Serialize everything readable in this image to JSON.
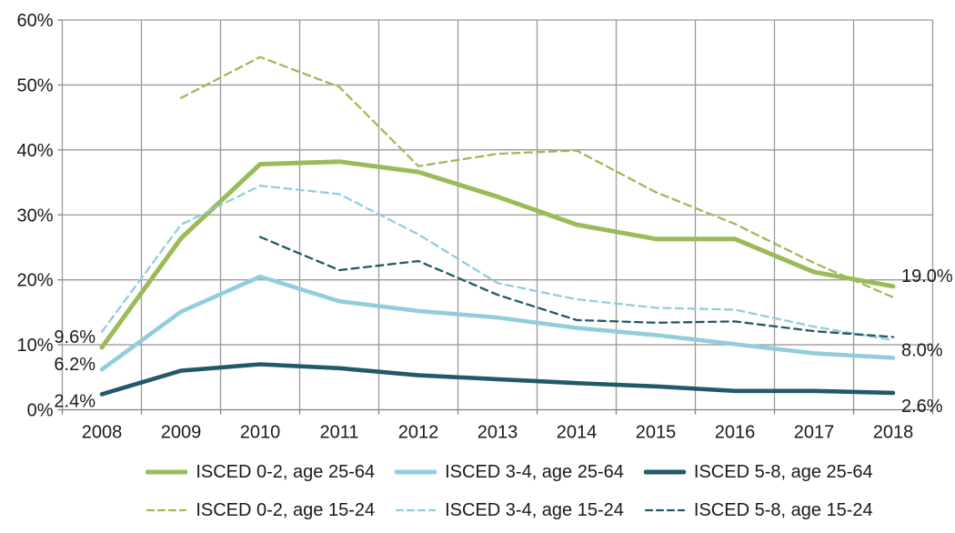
{
  "chart_data": {
    "type": "line",
    "title": "",
    "x_ticks": [
      "2008",
      "2009",
      "2010",
      "2011",
      "2012",
      "2013",
      "2014",
      "2015",
      "2016",
      "2017",
      "2018"
    ],
    "y_ticks": [
      "0%",
      "10%",
      "20%",
      "30%",
      "40%",
      "50%",
      "60%"
    ],
    "y_axis": {
      "min": 0,
      "max": 60,
      "step": 10,
      "unit": "%"
    },
    "grid": true,
    "legend_position": "bottom",
    "series": [
      {
        "name": "ISCED 0-2, age 25-64",
        "color": "#9BBB59",
        "style": "solid",
        "values": [
          9.6,
          26.4,
          37.8,
          38.2,
          36.6,
          32.8,
          28.5,
          26.3,
          26.3,
          21.2,
          19.0
        ]
      },
      {
        "name": "ISCED 3-4, age 25-64",
        "color": "#92CDDC",
        "style": "solid",
        "values": [
          6.2,
          15.1,
          20.5,
          16.7,
          15.2,
          14.2,
          12.6,
          11.5,
          10.1,
          8.7,
          8.0
        ]
      },
      {
        "name": "ISCED 5-8, age 25-64",
        "color": "#215968",
        "style": "solid",
        "values": [
          2.4,
          6.0,
          7.0,
          6.4,
          5.3,
          4.7,
          4.1,
          3.6,
          2.9,
          2.9,
          2.6
        ]
      },
      {
        "name": "ISCED 0-2, age 15-24",
        "color": "#9BBB59",
        "style": "dashed",
        "values": [
          null,
          48.0,
          54.3,
          49.7,
          37.5,
          39.4,
          39.9,
          33.5,
          28.6,
          22.6,
          17.3
        ]
      },
      {
        "name": "ISCED 3-4, age 15-24",
        "color": "#92CDDC",
        "style": "dashed",
        "values": [
          12.0,
          28.5,
          34.5,
          33.2,
          27.0,
          19.5,
          17.0,
          15.7,
          15.4,
          12.8,
          10.7
        ]
      },
      {
        "name": "ISCED 5-8, age 15-24",
        "color": "#215968",
        "style": "dashed",
        "values": [
          null,
          null,
          26.6,
          21.5,
          22.9,
          17.7,
          13.8,
          13.4,
          13.6,
          12.1,
          11.2
        ]
      }
    ],
    "annotations": [
      {
        "text": "9.6%",
        "series": 0,
        "year": "2008",
        "side": "left"
      },
      {
        "text": "6.2%",
        "series": 1,
        "year": "2008",
        "side": "left"
      },
      {
        "text": "2.4%",
        "series": 2,
        "year": "2008",
        "side": "left"
      },
      {
        "text": "19.0%",
        "series": 0,
        "year": "2018",
        "side": "right"
      },
      {
        "text": "8.0%",
        "series": 1,
        "year": "2018",
        "side": "right"
      },
      {
        "text": "2.6%",
        "series": 2,
        "year": "2018",
        "side": "right"
      }
    ]
  },
  "colors": {
    "grid": "#9a9a9a",
    "axis": "#808080",
    "text": "#1a1a1a",
    "background": "#ffffff"
  }
}
